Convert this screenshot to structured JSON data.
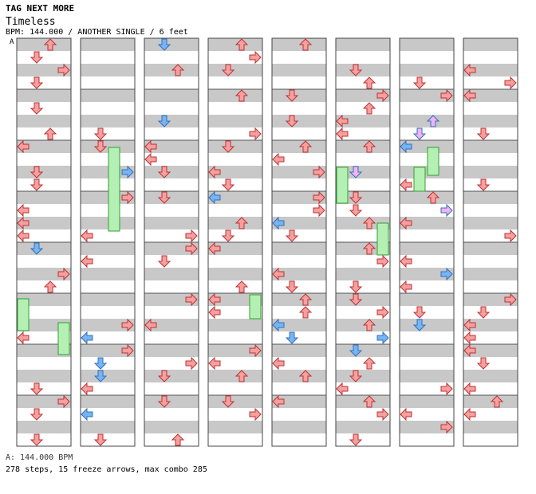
{
  "header": {
    "tag_label": "TAG NEXT MORE",
    "song_title": "Timeless",
    "subtitle": "BPM: 144.000 / ANOTHER SINGLE / 6 feet",
    "bpm_marker": "A"
  },
  "footer": {
    "bpm_line": "A: 144.000 BPM",
    "stats_line": "278 steps, 15 freeze arrows, max combo 285"
  },
  "colors": {
    "note_red": "#f5a0a0",
    "note_blue": "#78b4f0",
    "note_pink": "#f0b4f0",
    "freeze_green": "#b4f0b4",
    "stripe_gray": "#c8c8c8"
  },
  "legend": {
    "lanes": [
      "left",
      "down",
      "up",
      "right"
    ],
    "icons": [
      "left-arrow-icon",
      "down-arrow-icon",
      "up-arrow-icon",
      "right-arrow-icon"
    ]
  }
}
